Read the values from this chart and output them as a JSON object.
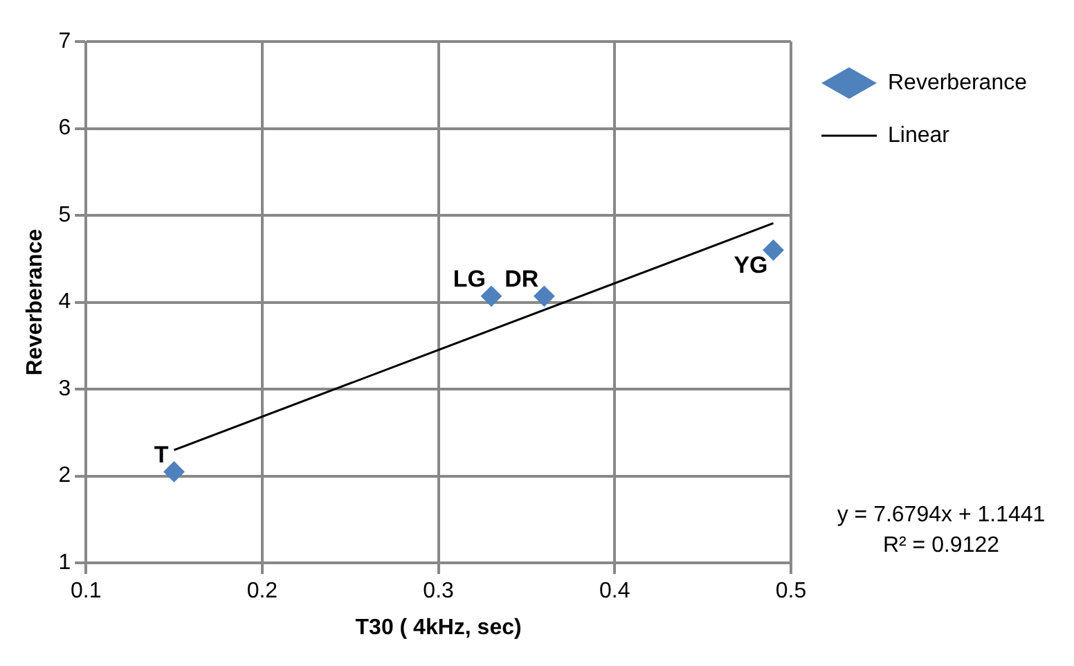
{
  "chart_data": {
    "type": "scatter",
    "xlabel": "T30 ( 4kHz, sec)",
    "ylabel": "Reverberance",
    "xlim": [
      0.1,
      0.5
    ],
    "xticks": [
      0.1,
      0.2,
      0.3,
      0.4,
      0.5
    ],
    "ylim": [
      1,
      7
    ],
    "yticks": [
      1,
      2,
      3,
      4,
      5,
      6,
      7
    ],
    "grid": true,
    "legend": "top right",
    "series": [
      {
        "name": "Reverberance",
        "color": "#4f81bd",
        "marker": "diamond",
        "x": [
          0.15,
          0.33,
          0.36,
          0.49
        ],
        "values": [
          2.05,
          4.07,
          4.07,
          4.6
        ]
      },
      {
        "type": "line",
        "name": "Linear",
        "color": "#000000",
        "marker": "none",
        "line_style": "solid",
        "x": [
          0.15,
          0.49
        ],
        "values": [
          2.3,
          4.91
        ]
      }
    ],
    "annotations": [
      {
        "text": "T",
        "x": 0.15,
        "y": 2.05
      },
      {
        "text": "LG",
        "x": 0.33,
        "y": 4.07
      },
      {
        "text": "DR",
        "x": 0.36,
        "y": 4.07
      },
      {
        "text": "YG",
        "x": 0.49,
        "y": 4.6
      },
      "y = 7.6794x + 1.1441",
      "R² = 0.9122"
    ]
  }
}
